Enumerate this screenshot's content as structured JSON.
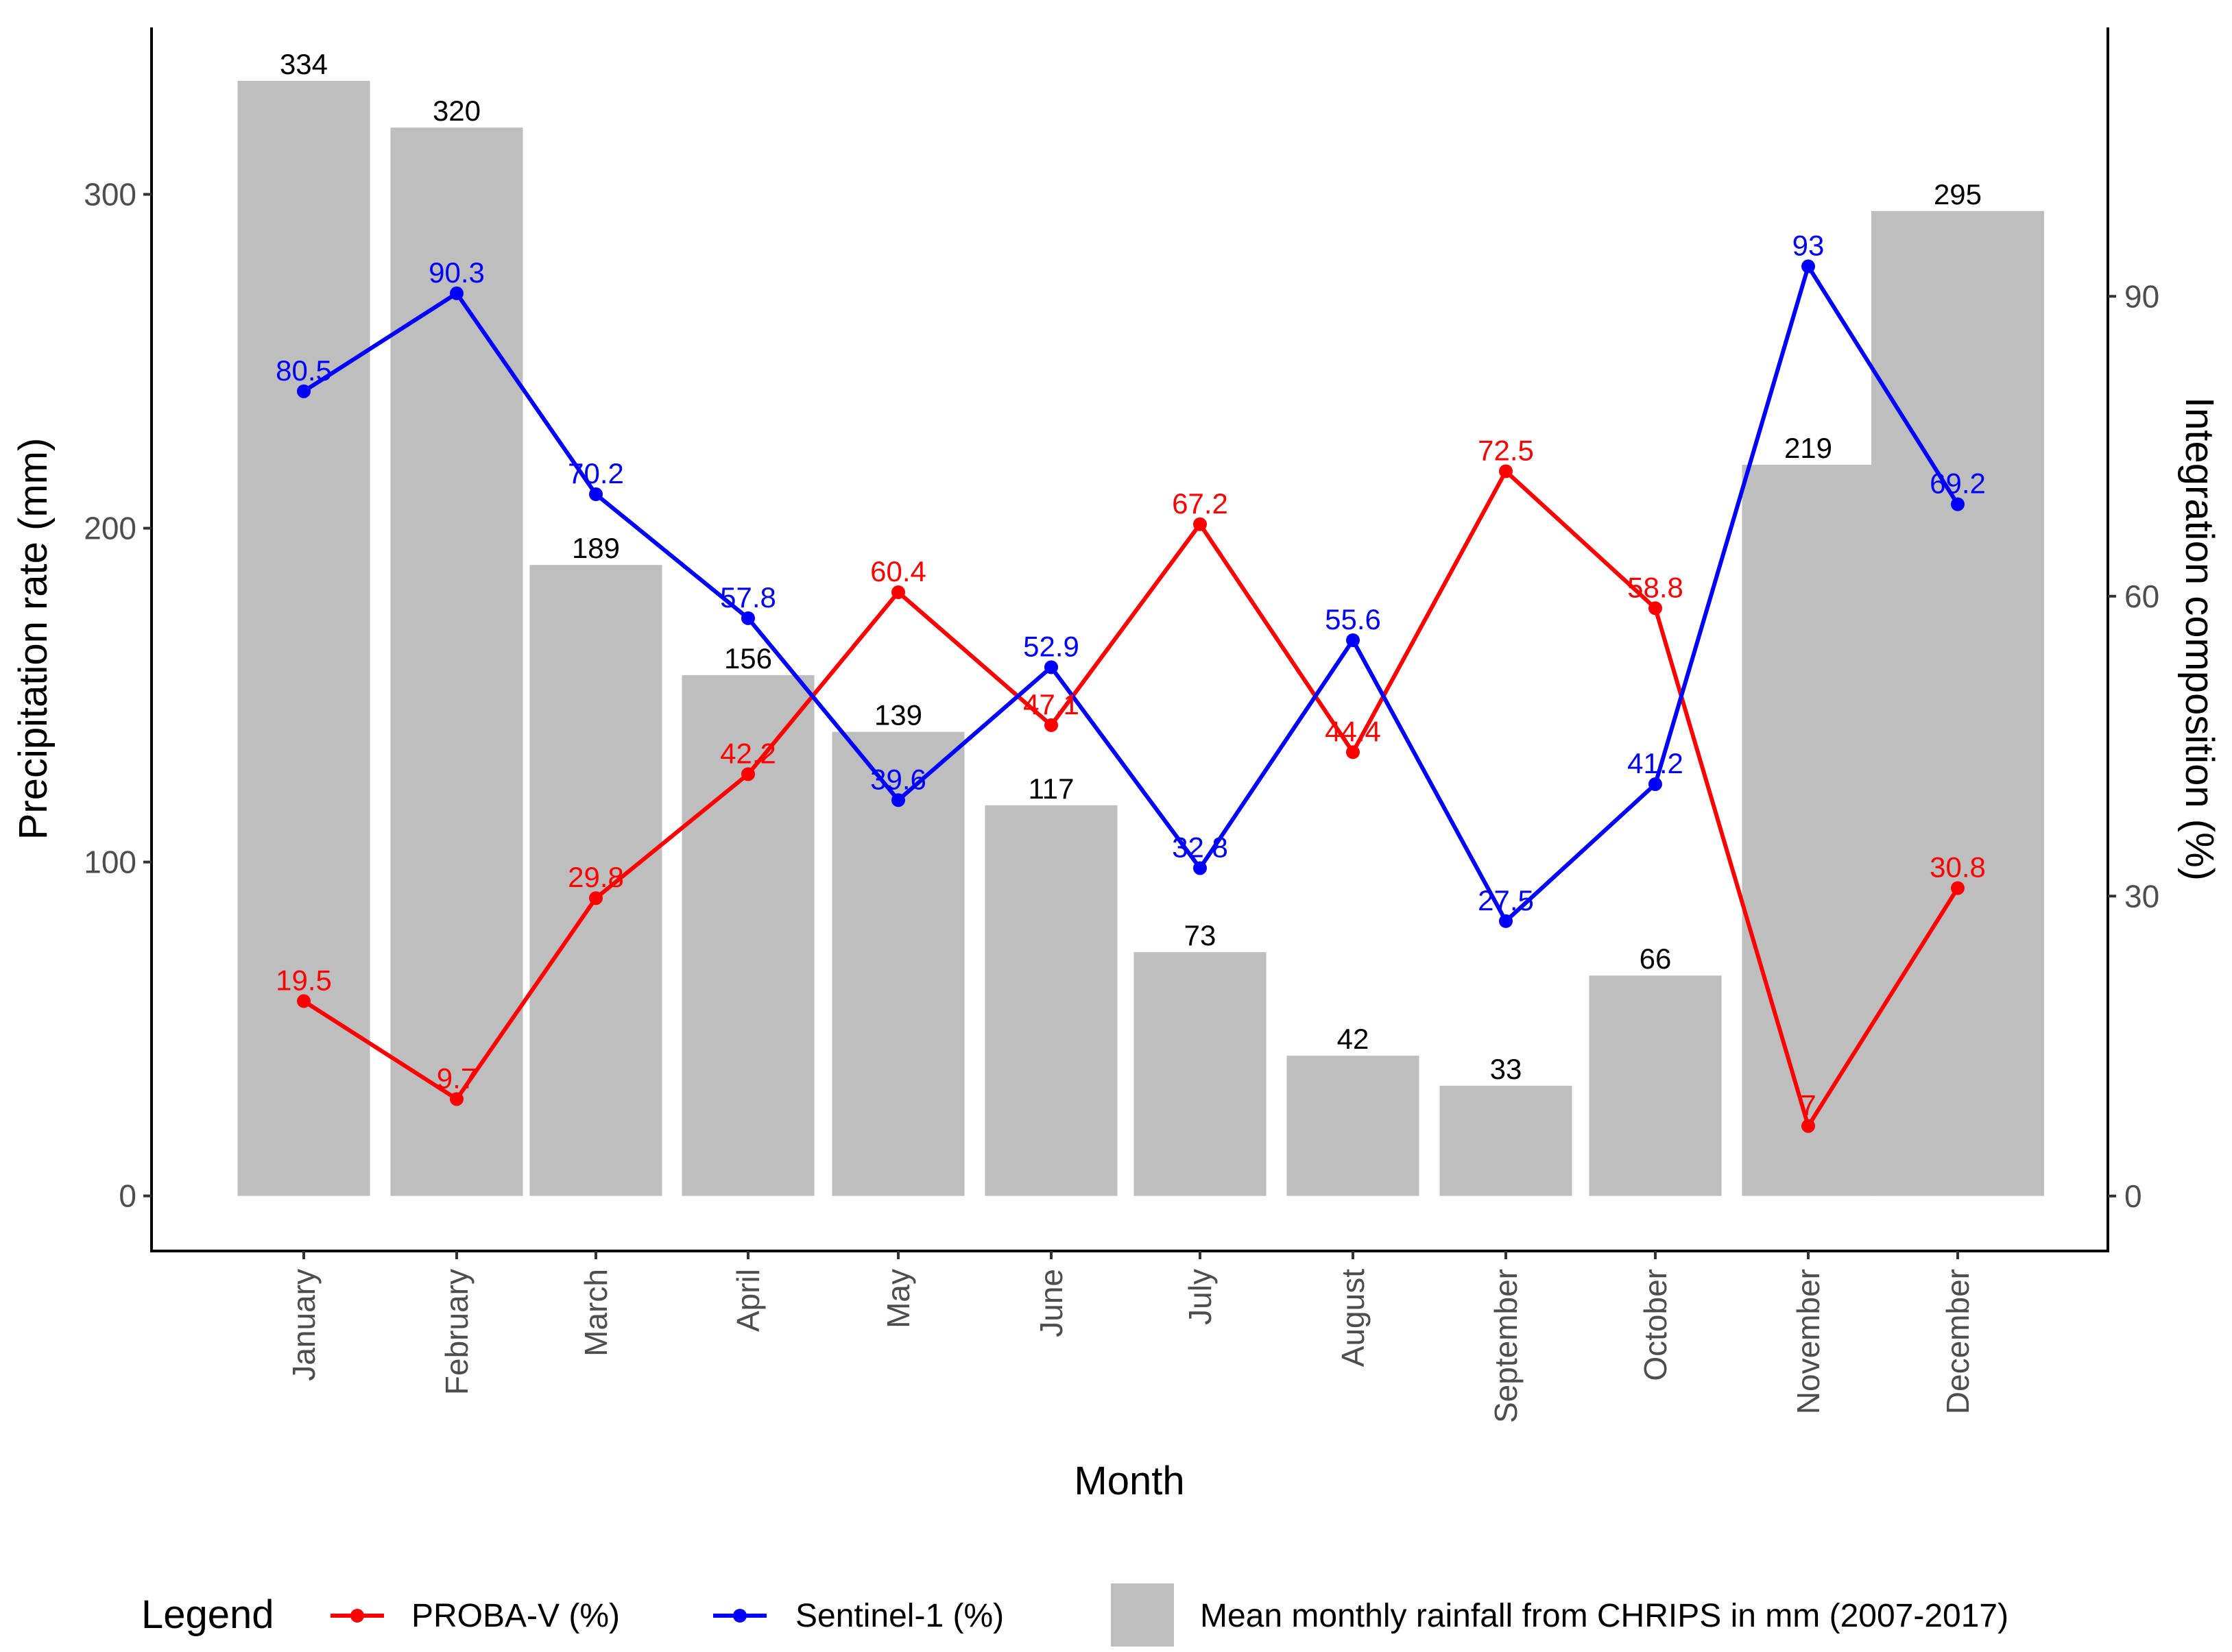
{
  "chart_data": {
    "type": "bar",
    "categories": [
      "January",
      "February",
      "March",
      "April",
      "May",
      "June",
      "July",
      "August",
      "September",
      "October",
      "November",
      "December"
    ],
    "bars": {
      "name": "Mean monthly rainfall from CHRIPS in mm (2007-2017)",
      "values": [
        334,
        320,
        189,
        156,
        139,
        117,
        73,
        42,
        33,
        66,
        219,
        295
      ],
      "labels": [
        "334",
        "320",
        "189",
        "156",
        "139",
        "117",
        "73",
        "42",
        "33",
        "66",
        "219",
        "295"
      ],
      "color": "#bebebe"
    },
    "series": [
      {
        "name": "PROBA-V (%)",
        "type": "line",
        "axis": "right",
        "color": "#ff0000",
        "values": [
          19.5,
          9.7,
          29.8,
          42.2,
          60.4,
          47.1,
          67.2,
          44.4,
          72.5,
          58.8,
          7,
          30.8
        ],
        "labels": [
          "19.5",
          "9.7",
          "29.8",
          "42.2",
          "60.4",
          "47.1",
          "67.2",
          "44.4",
          "72.5",
          "58.8",
          "7",
          "30.8"
        ]
      },
      {
        "name": "Sentinel-1 (%)",
        "type": "line",
        "axis": "right",
        "color": "#0000ff",
        "values": [
          80.5,
          90.3,
          70.2,
          57.8,
          39.6,
          52.9,
          32.8,
          55.6,
          27.5,
          41.2,
          93,
          69.2
        ],
        "labels": [
          "80.5",
          "90.3",
          "70.2",
          "57.8",
          "39.6",
          "52.9",
          "32.8",
          "55.6",
          "27.5",
          "41.2",
          "93",
          "69.2"
        ]
      }
    ],
    "xlabel": "Month",
    "ylabel": "Precipitation rate (mm)",
    "y2label": "Integration composition (%)",
    "ylim": [
      -16.5,
      350
    ],
    "y2lim": [
      -5.5,
      116.9
    ],
    "yticks": [
      0,
      100,
      200,
      300
    ],
    "ytick_labels": [
      "0",
      "100",
      "200",
      "300"
    ],
    "y2ticks": [
      0,
      30,
      60,
      90
    ],
    "y2tick_labels": [
      "0",
      "30",
      "60",
      "90"
    ],
    "legend": {
      "title": "Legend",
      "position": "bottom",
      "items": [
        "PROBA-V (%)",
        "Sentinel-1 (%)",
        "Mean monthly rainfall from CHRIPS in mm (2007-2017)"
      ]
    }
  }
}
